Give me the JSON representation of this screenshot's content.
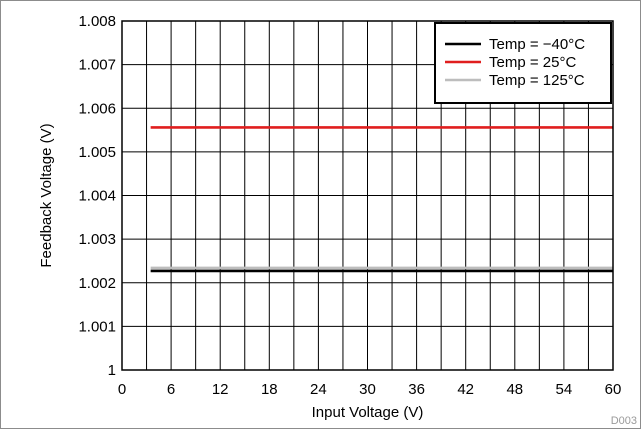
{
  "chart_data": {
    "type": "line",
    "xlabel": "Input Voltage (V)",
    "ylabel": "Feedback Voltage (V)",
    "xlim": [
      0,
      60
    ],
    "ylim": [
      1.0,
      1.008
    ],
    "x_ticks": [
      0,
      6,
      12,
      18,
      24,
      30,
      36,
      42,
      48,
      54,
      60
    ],
    "x_tick_labels": [
      "0",
      "6",
      "12",
      "18",
      "24",
      "30",
      "36",
      "42",
      "48",
      "54",
      "60"
    ],
    "x_minor_step": 3,
    "y_ticks": [
      1.0,
      1.001,
      1.002,
      1.003,
      1.004,
      1.005,
      1.006,
      1.007,
      1.008
    ],
    "y_tick_labels": [
      "1",
      "1.001",
      "1.002",
      "1.003",
      "1.004",
      "1.005",
      "1.006",
      "1.007",
      "1.008"
    ],
    "grid": true,
    "legend_position": "top-right",
    "series": [
      {
        "name": "Temp = −40°C",
        "color": "#000000",
        "x": [
          3.5,
          60
        ],
        "y": [
          1.00227,
          1.00227
        ]
      },
      {
        "name": "Temp = 25°C",
        "color": "#e01e1e",
        "x": [
          3.5,
          60
        ],
        "y": [
          1.00556,
          1.00556
        ]
      },
      {
        "name": "Temp = 125°C",
        "color": "#bdbdbd",
        "x": [
          3.5,
          60
        ],
        "y": [
          1.00234,
          1.00234
        ]
      }
    ],
    "figure_id": "D003"
  }
}
